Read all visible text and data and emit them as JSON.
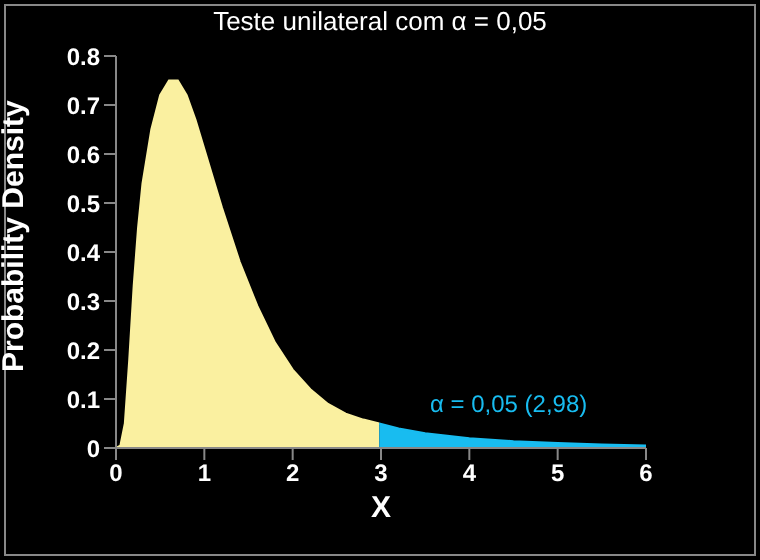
{
  "chart_data": {
    "type": "area",
    "title": "Teste unilateral com α = 0,05",
    "xlabel": "X",
    "ylabel": "Probability Density",
    "annotations": [
      "α = 0,05 (2,98)"
    ],
    "series": [
      {
        "color": "#faf0a0",
        "x": [
          0,
          0.05,
          0.1,
          0.15,
          0.2,
          0.25,
          0.3,
          0.4,
          0.5,
          0.6,
          0.7,
          0.8,
          0.9,
          1.0,
          1.2,
          1.4,
          1.6,
          1.8,
          2.0,
          2.2,
          2.4,
          2.6,
          2.8,
          2.98
        ],
        "values": [
          0,
          0.005,
          0.05,
          0.18,
          0.33,
          0.45,
          0.54,
          0.65,
          0.72,
          0.75,
          0.75,
          0.72,
          0.67,
          0.61,
          0.49,
          0.38,
          0.29,
          0.215,
          0.16,
          0.12,
          0.09,
          0.07,
          0.058,
          0.05
        ]
      },
      {
        "color": "#18bcf0",
        "x": [
          2.98,
          3.2,
          3.5,
          4.0,
          4.5,
          5.0,
          5.5,
          6.0
        ],
        "values": [
          0.05,
          0.04,
          0.03,
          0.02,
          0.014,
          0.01,
          0.007,
          0.005
        ]
      }
    ],
    "xlim": [
      0,
      6
    ],
    "xticks": [
      0,
      1,
      2,
      3,
      4,
      5,
      6
    ],
    "ylim": [
      0,
      0.8
    ],
    "yticks": [
      0,
      0.1,
      0.2,
      0.3,
      0.4,
      0.5,
      0.6,
      0.7,
      0.8
    ],
    "grid": false,
    "legend": false
  }
}
